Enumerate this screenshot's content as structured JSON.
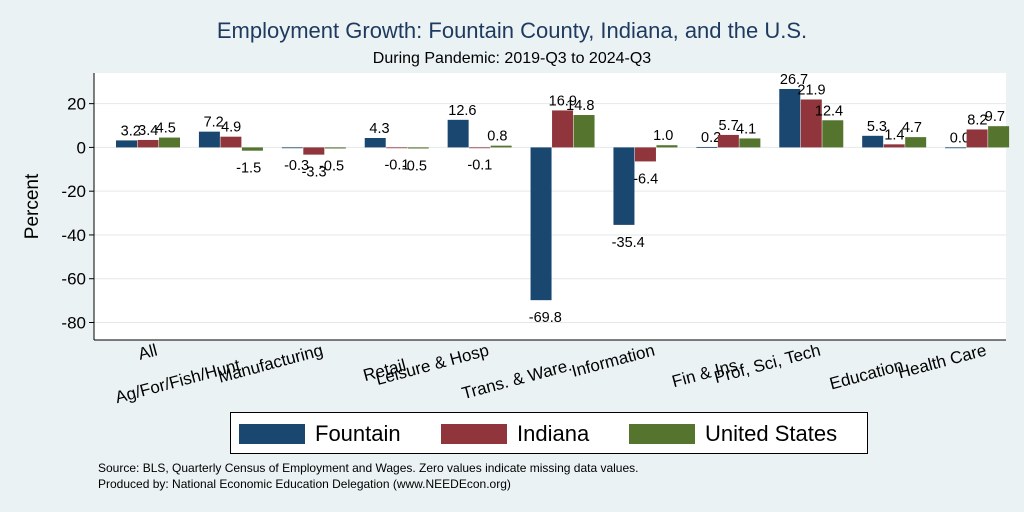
{
  "chart_data": {
    "type": "bar",
    "title": "Employment Growth: Fountain County, Indiana, and the U.S.",
    "subtitle": "During Pandemic: 2019-Q3 to 2024-Q3",
    "ylabel": "Percent",
    "xlabel": "",
    "ylim": [
      -88,
      34
    ],
    "yticks": [
      20,
      0,
      -20,
      -40,
      -60,
      -80
    ],
    "yticklabels": [
      "20",
      "0",
      "-20",
      "-40",
      "-60",
      "-80"
    ],
    "grid": true,
    "legend_position": "bottom",
    "categories": [
      "All",
      "Ag/For/Fish/Hunt",
      "Manufacturing",
      "Retail",
      "Leisure & Hosp",
      "Trans. & Ware.",
      "Information",
      "Fin & Ins",
      "Prof, Sci, Tech",
      "Education",
      "Health Care"
    ],
    "series": [
      {
        "name": "Fountain",
        "color": "#1a476f",
        "values": [
          3.2,
          7.2,
          -0.3,
          4.3,
          12.6,
          -69.8,
          -35.4,
          0.2,
          26.7,
          5.3,
          0.0
        ],
        "labels": [
          "3.2",
          "7.2",
          "-0.3",
          "4.3",
          "12.6",
          "-69.8",
          "-35.4",
          "0.2",
          "26.7",
          "5.3",
          "0.0"
        ]
      },
      {
        "name": "Indiana",
        "color": "#90353b",
        "values": [
          3.4,
          4.9,
          -3.3,
          -0.1,
          -0.1,
          16.9,
          -6.4,
          5.7,
          21.9,
          1.4,
          8.2
        ],
        "labels": [
          "3.4",
          "4.9",
          "-3.3",
          "-0.1",
          "-0.1",
          "16.9",
          "-6.4",
          "5.7",
          "21.9",
          "1.4",
          "8.2"
        ]
      },
      {
        "name": "United States",
        "color": "#55752f",
        "values": [
          4.5,
          -1.5,
          -0.5,
          -0.5,
          0.8,
          14.8,
          1.0,
          4.1,
          12.4,
          4.7,
          9.7
        ],
        "labels": [
          "4.5",
          "-1.5",
          "-0.5",
          "-0.5",
          "0.8",
          "14.8",
          "1.0",
          "4.1",
          "12.4",
          "4.7",
          "9.7"
        ]
      }
    ]
  },
  "footer": {
    "source": "Source: BLS, Quarterly Census of Employment and Wages. Zero values indicate missing data values.",
    "producer": "Produced by: National Economic Education Delegation (www.NEEDEcon.org)"
  }
}
